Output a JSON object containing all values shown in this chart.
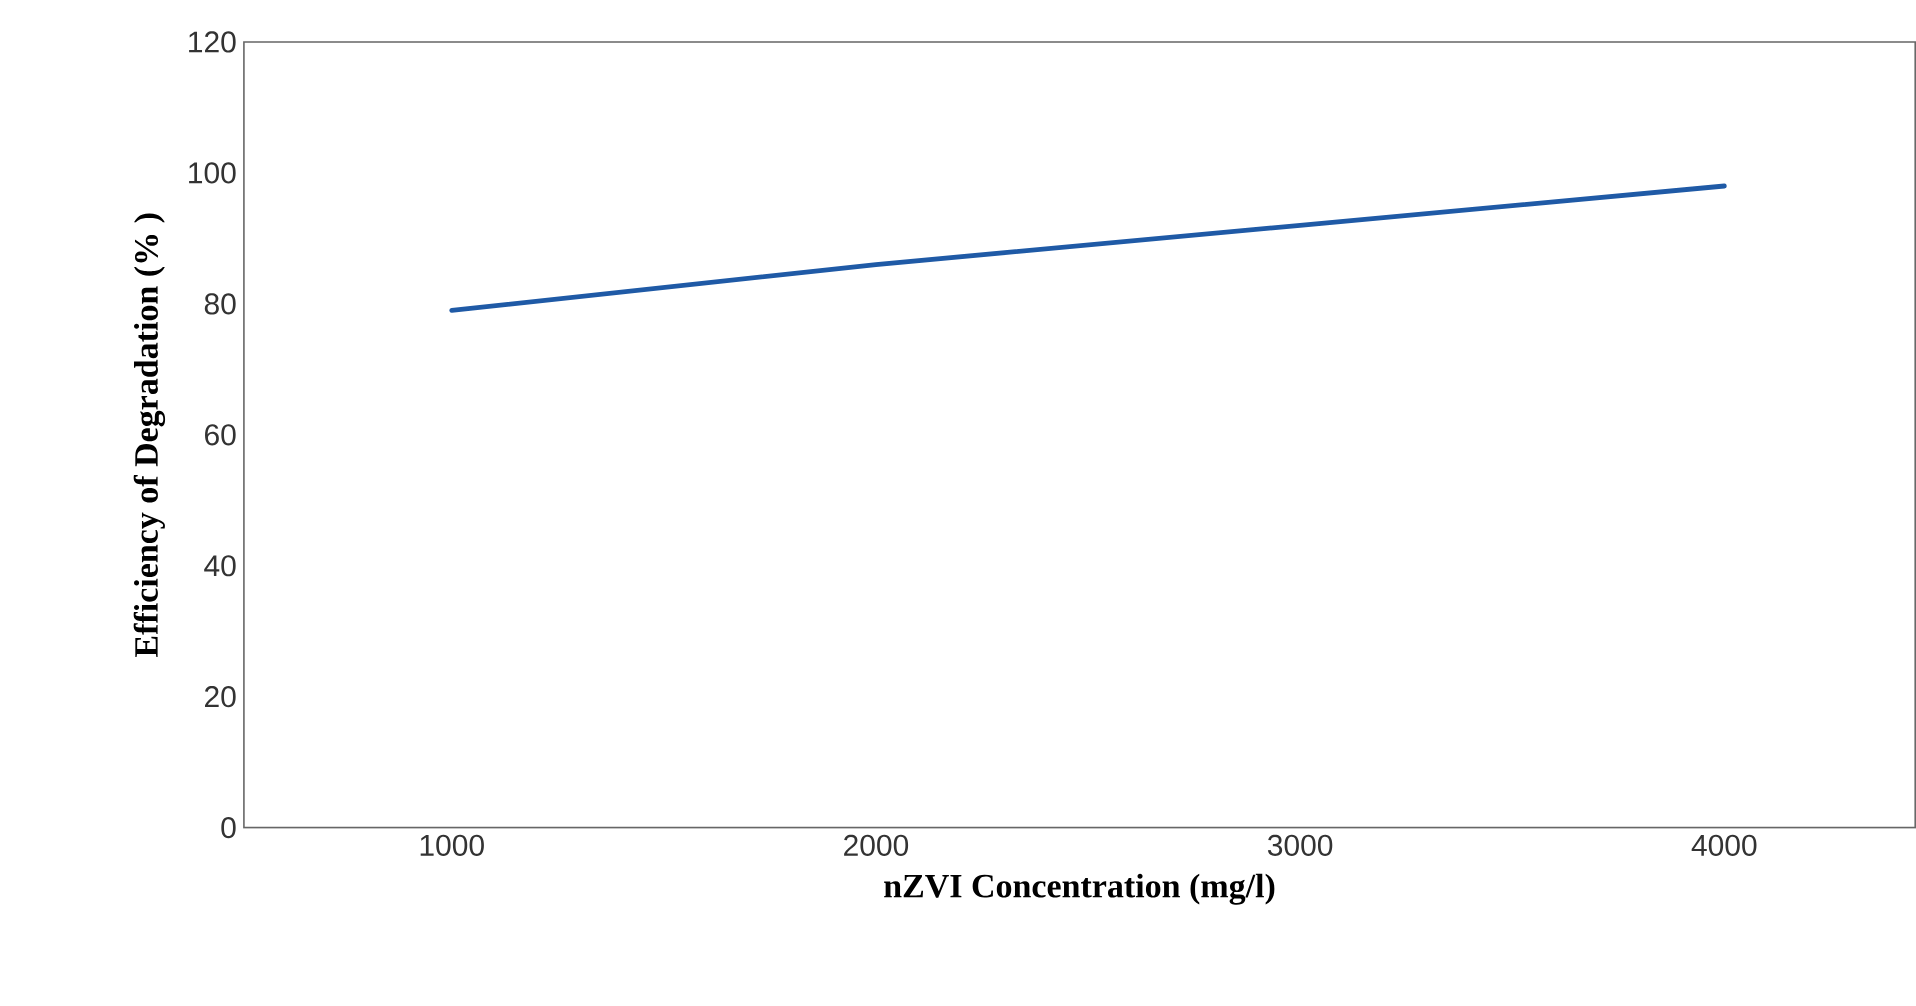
{
  "chart_data": {
    "type": "line",
    "xlabel": "nZVI Concentration (mg/l)",
    "ylabel": "Efficiency of Degradation (% )",
    "categories": [
      "1000",
      "2000",
      "3000",
      "4000"
    ],
    "series": [
      {
        "color": "#1f5aa6",
        "values": [
          79,
          86,
          92,
          98
        ]
      }
    ],
    "ylim": [
      0,
      120
    ],
    "yticks": [
      0,
      20,
      40,
      60,
      80,
      100,
      120
    ],
    "grid": false,
    "marker": "none",
    "line_style": "solid"
  }
}
